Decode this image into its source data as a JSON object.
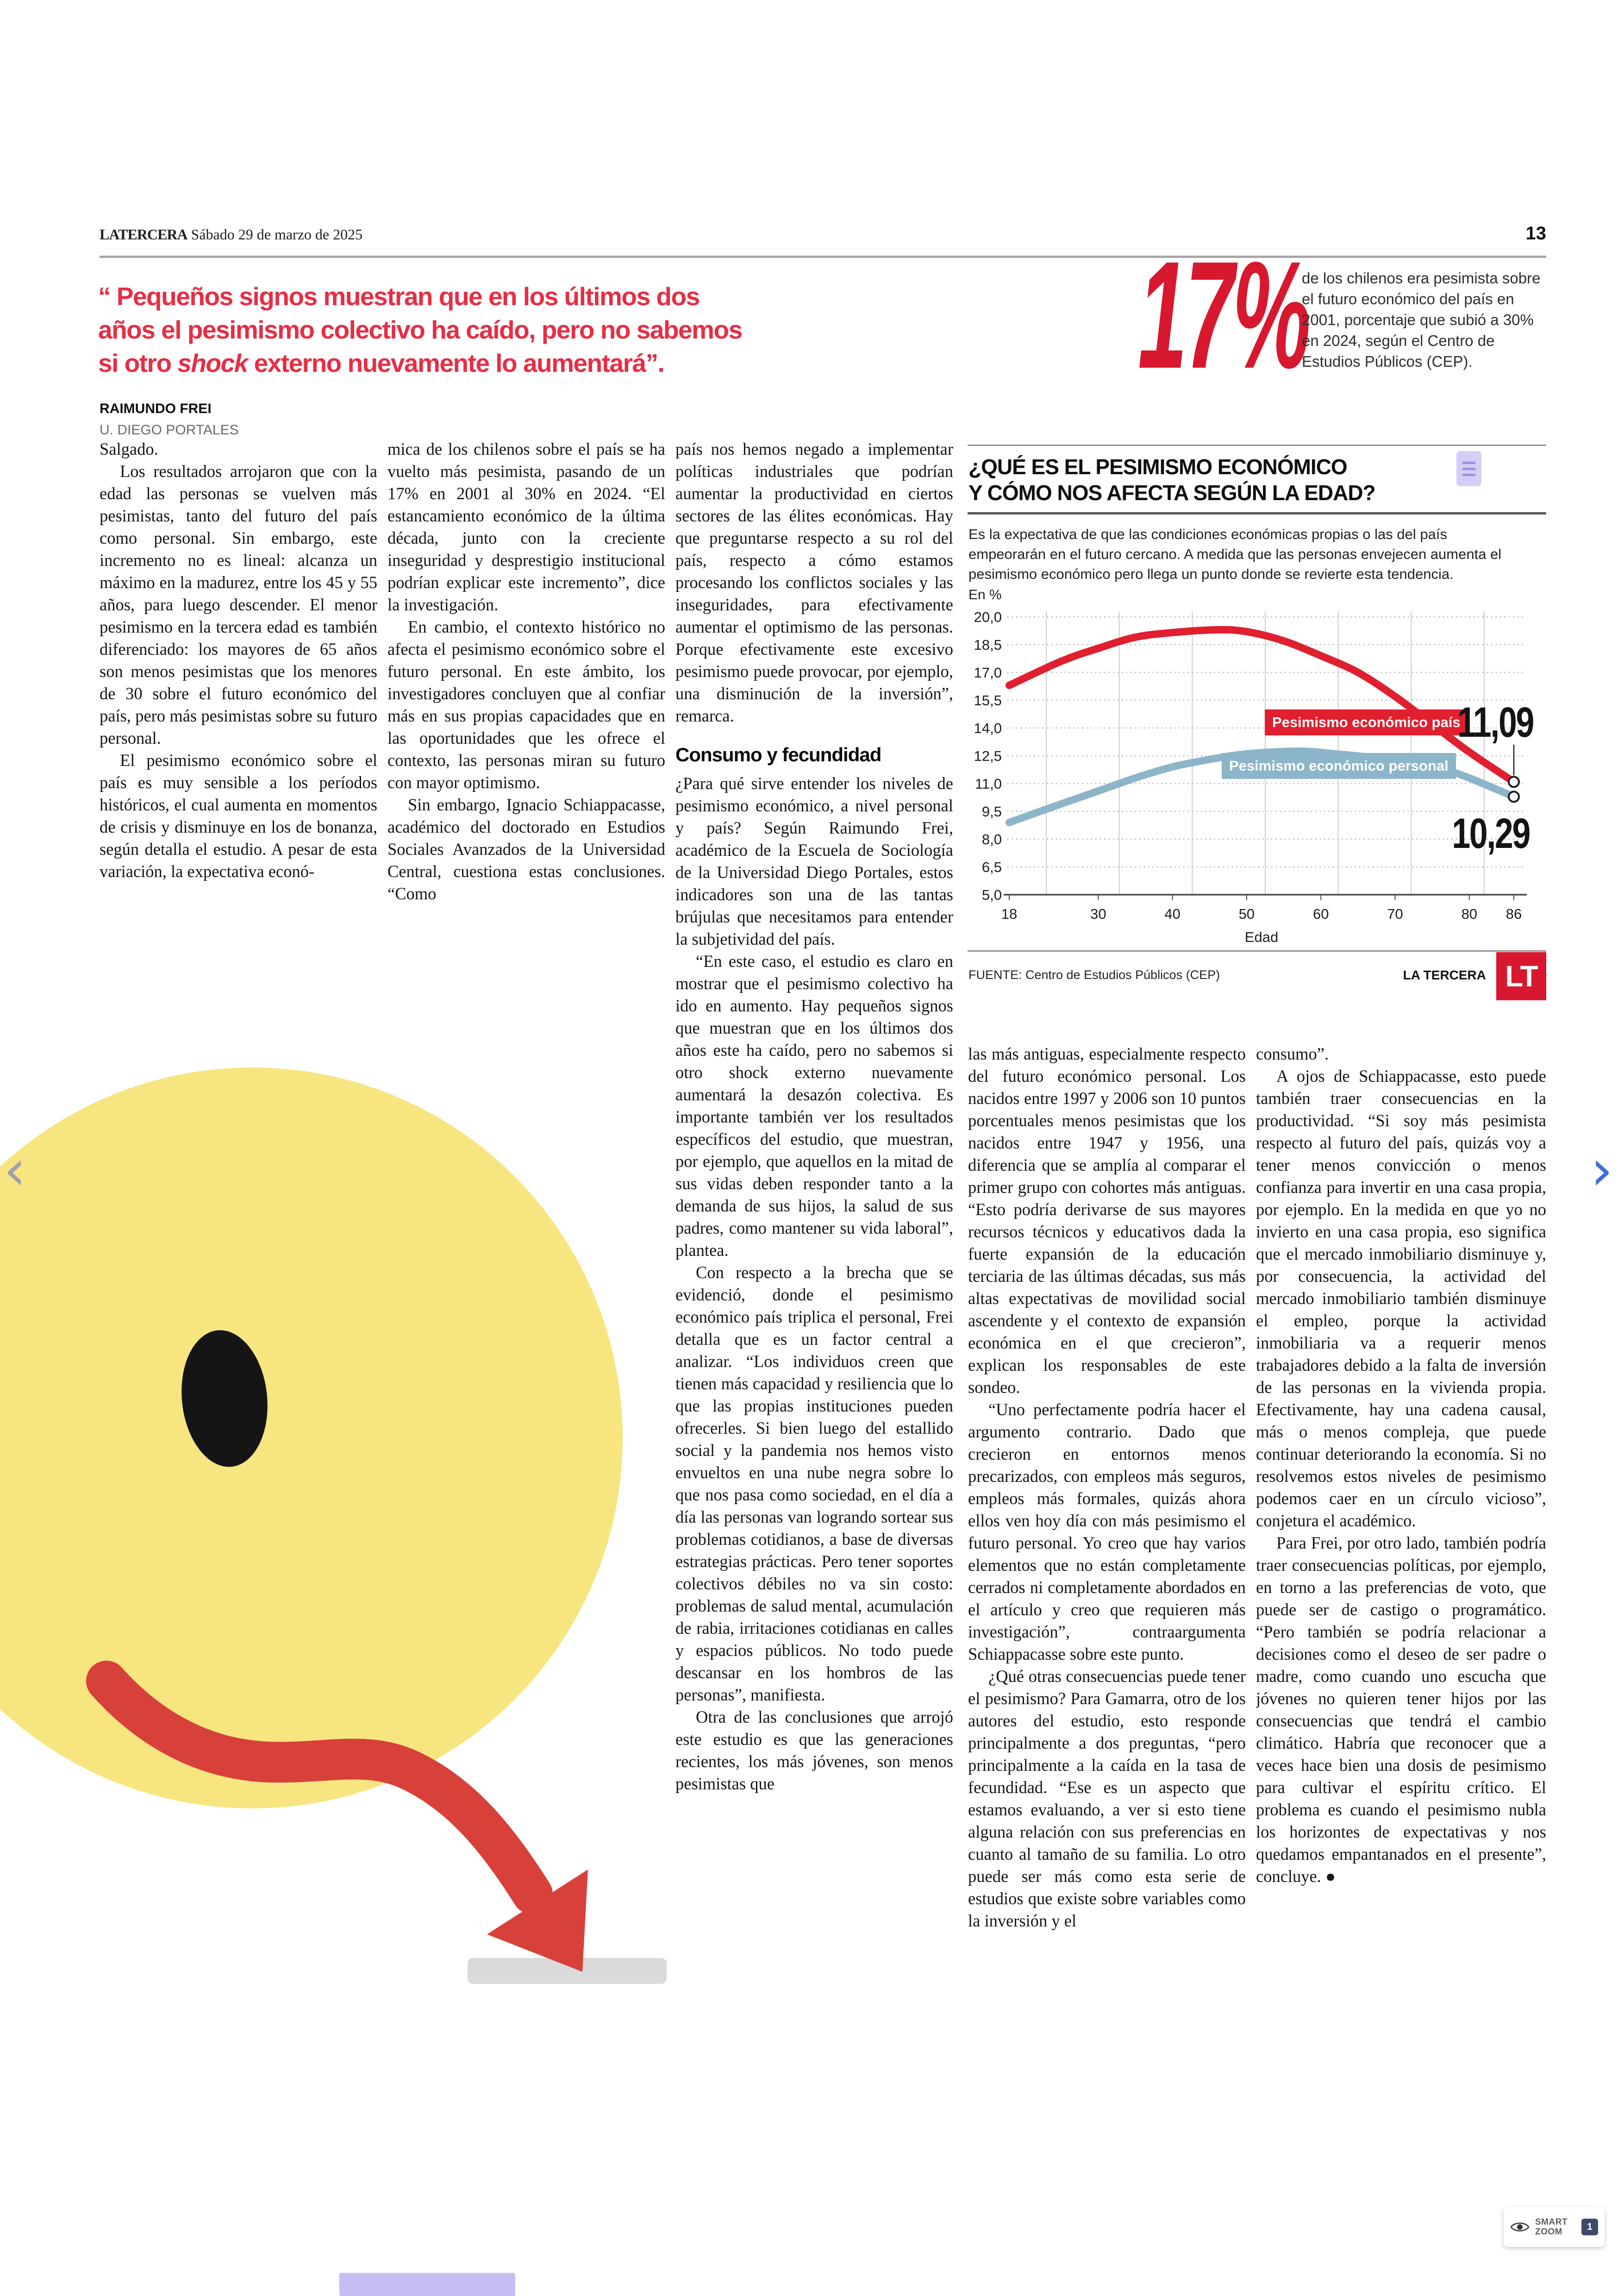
{
  "page": {
    "brand": "LATERCERA",
    "date": " Sábado 29 de marzo de 2025",
    "number": "13"
  },
  "quote": {
    "part1": "“ Pequeños signos muestran que en los últimos dos años el pesimismo colectivo ha caído, pero no sabemos si otro ",
    "italic": "shock",
    "part2": " externo nuevamente lo aumentará”.",
    "author": "RAIMUNDO FREI",
    "affiliation": "U. DIEGO PORTALES"
  },
  "stat": {
    "value": "17%",
    "text": "de los chilenos era pesimista sobre el futuro económico del país en 2001, porcentaje que subió a 30% en 2024, según el Centro de Estudios Públicos (CEP)."
  },
  "infographic": {
    "title_line1": "¿QUÉ ES EL PESIMISMO ECONÓMICO",
    "title_line2": "Y CÓMO NOS AFECTA SEGÚN LA EDAD?",
    "subtitle": "Es la expectativa de que las condiciones económicas propias o las del país empeorarán en el futuro cercano. A medida que las personas envejecen aumenta el pesimismo económico pero llega un punto donde se revierte esta tendencia.",
    "unit": "En %",
    "source": "FUENTE: Centro de Estudios Públicos (CEP)",
    "credit": "LA TERCERA",
    "logo": "LT"
  },
  "chart_data": {
    "type": "line",
    "title": "¿QUÉ ES EL PESIMISMO ECONÓMICO Y CÓMO NOS AFECTA SEGÚN LA EDAD?",
    "subtitle": "Es la expectativa de que las condiciones económicas propias o las del país empeorarán en el futuro cercano. A medida que las personas envejecen aumenta el pesimismo económico pero llega un punto donde se revierte esta tendencia.",
    "unit": "En %",
    "xlabel": "Edad",
    "x_ticks": [
      18,
      30,
      40,
      50,
      60,
      70,
      80,
      86
    ],
    "y_ticks": [
      5.0,
      6.5,
      8.0,
      9.5,
      11.0,
      12.5,
      14.0,
      15.5,
      17.0,
      18.5,
      20.0
    ],
    "xlim": [
      18,
      86
    ],
    "ylim": [
      5.0,
      20.0
    ],
    "grid": "horizontal dotted, vertical solid",
    "legend_position": "inline boxes on curves",
    "source": "FUENTE: Centro de Estudios Públicos (CEP)",
    "credit": "LA TERCERA",
    "series": [
      {
        "name": "Pesimismo económico país",
        "color": "#e01f2f",
        "end_label": "11,09",
        "end_value": 11.09,
        "points": [
          [
            18,
            16.3
          ],
          [
            25,
            17.6
          ],
          [
            30,
            18.3
          ],
          [
            35,
            18.9
          ],
          [
            40,
            19.15
          ],
          [
            46,
            19.3
          ],
          [
            50,
            19.2
          ],
          [
            55,
            18.7
          ],
          [
            60,
            17.9
          ],
          [
            65,
            17.0
          ],
          [
            70,
            15.7
          ],
          [
            75,
            14.2
          ],
          [
            80,
            12.7
          ],
          [
            86,
            11.09
          ]
        ]
      },
      {
        "name": "Pesimismo económico personal",
        "color": "#8db5c9",
        "end_label": "10,29",
        "end_value": 10.29,
        "points": [
          [
            18,
            8.9
          ],
          [
            25,
            9.9
          ],
          [
            30,
            10.6
          ],
          [
            35,
            11.3
          ],
          [
            40,
            11.9
          ],
          [
            45,
            12.3
          ],
          [
            50,
            12.6
          ],
          [
            57,
            12.75
          ],
          [
            62,
            12.6
          ],
          [
            67,
            12.4
          ],
          [
            72,
            12.1
          ],
          [
            77,
            11.7
          ],
          [
            80,
            11.3
          ],
          [
            86,
            10.29
          ]
        ]
      }
    ]
  },
  "article": {
    "columns": [
      {
        "blocks": [
          {
            "t": "p",
            "indent": false,
            "text": "Salgado."
          },
          {
            "t": "p",
            "indent": true,
            "text": "Los resultados arrojaron que con la edad las personas se vuelven más pesimistas, tanto del futuro del país como personal. Sin embargo, este incremento no es lineal: alcanza un máximo en la madurez, entre los 45 y 55 años, para luego descender. El menor pesimismo en la tercera edad es también diferenciado: los mayores de 65 años son menos pesimistas que los menores de 30 sobre el futuro económico del país, pero más pesimistas sobre su futuro personal."
          },
          {
            "t": "p",
            "indent": true,
            "text": "El pesimismo económico sobre el país es muy sensible a los períodos históricos, el cual aumenta en momentos de crisis y disminuye en los de bonanza, según detalla el estudio. A pesar de esta variación, la expectativa econó-"
          }
        ]
      },
      {
        "blocks": [
          {
            "t": "p",
            "indent": false,
            "text": "mica de los chilenos sobre el país se ha vuelto más pesimista, pasando de un 17% en 2001 al 30% en 2024. “El estancamiento económico de la última década, junto con la creciente inseguridad y desprestigio institucional podrían explicar este incremento”, dice la investigación."
          },
          {
            "t": "p",
            "indent": true,
            "text": "En cambio, el contexto histórico no afecta el pesimismo económico sobre el futuro personal. En este ámbito, los investigadores concluyen que al confiar más en sus propias capacidades que en las oportunidades que les ofrece el contexto, las personas miran su futuro con mayor optimismo."
          },
          {
            "t": "p",
            "indent": true,
            "text": "Sin embargo, Ignacio Schiappacasse, académico del doctorado en Estudios Sociales Avanzados de la Universidad Central, cuestiona estas conclusiones. “Como"
          }
        ]
      },
      {
        "blocks": [
          {
            "t": "p",
            "indent": false,
            "text": "país nos hemos negado a implementar políticas industriales que podrían aumentar la productividad en ciertos sectores de las élites económicas. Hay que preguntarse respecto a su rol del país, respecto a cómo estamos procesando los conflictos sociales y las inseguridades, para efectivamente aumentar el optimismo de las personas. Porque efectivamente este excesivo pesimismo puede provocar, por ejemplo, una disminución de la inversión”, remarca."
          },
          {
            "t": "h",
            "text": "Consumo y fecundidad"
          },
          {
            "t": "p",
            "indent": false,
            "text": "¿Para qué sirve entender los niveles de pesimismo económico, a nivel personal y país? Según Raimundo Frei, académico de la Escuela de Sociología de la Universidad Diego Portales, estos indicadores son una de las tantas brújulas que necesitamos para entender la subjetividad del país."
          },
          {
            "t": "p",
            "indent": true,
            "text": "“En este caso, el estudio es claro en mostrar que el pesimismo colectivo ha ido en aumento. Hay pequeños signos que muestran que en los últimos dos años este ha caído, pero no sabemos si otro shock externo nuevamente aumentará la desazón colectiva. Es importante también ver los resultados específicos del estudio, que muestran, por ejemplo, que aquellos en la mitad de sus vidas deben responder tanto a la demanda de sus hijos, la salud de sus padres, como mantener su vida laboral”, plantea."
          },
          {
            "t": "p",
            "indent": true,
            "text": "Con respecto a la brecha que se evidenció, donde el pesimismo económico país triplica el personal, Frei detalla que es un factor central a analizar. “Los individuos creen que tienen más capacidad y resiliencia que lo que las propias instituciones pueden ofrecerles. Si bien luego del estallido social y la pandemia nos hemos visto envueltos en una nube negra sobre lo que nos pasa como sociedad, en el día a día las personas van logrando sortear sus problemas cotidianos, a base de diversas estrategias prácticas. Pero tener soportes colectivos débiles no va sin costo: problemas de salud mental, acumulación de rabia, irritaciones cotidianas en calles y espacios públicos. No todo puede descansar en los hombros de las personas”, manifiesta."
          },
          {
            "t": "p",
            "indent": true,
            "text": "Otra de las conclusiones que arrojó este estudio es que las generaciones recientes, los más jóvenes, son menos pesimistas que"
          }
        ]
      },
      {
        "blocks": [
          {
            "t": "p",
            "indent": false,
            "text": "las más antiguas, especialmente respecto del futuro económico personal. Los nacidos entre 1997 y 2006 son 10 puntos porcentuales menos pesimistas que los nacidos entre 1947 y 1956, una diferencia que se amplía al comparar el primer grupo con cohortes más antiguas. “Esto podría derivarse de sus mayores recursos técnicos y educativos dada la fuerte expansión de la educación terciaria de las últimas décadas, sus más altas expectativas de movilidad social ascendente y el contexto de expansión económica en el que crecieron”, explican los responsables de este sondeo."
          },
          {
            "t": "p",
            "indent": true,
            "text": "“Uno perfectamente podría hacer el argumento contrario. Dado que crecieron en entornos menos precarizados, con empleos más seguros, empleos más formales, quizás ahora ellos ven hoy día con más pesimismo el futuro personal. Yo creo que hay varios elementos que no están completamente cerrados ni completamente abordados en el artículo y creo que requieren más investigación”, contraargumenta Schiappacasse sobre este punto."
          },
          {
            "t": "p",
            "indent": true,
            "text": "¿Qué otras consecuencias puede tener el pesimismo? Para Gamarra, otro de los autores del estudio, esto responde principalmente a dos preguntas, “pero principalmente a la caída en la tasa de fecundidad. “Ese es un aspecto que estamos evaluando, a ver si esto tiene alguna relación con sus preferencias en cuanto al tamaño de su familia. Lo otro puede ser más como esta serie de estudios que existe sobre variables como la inversión y el"
          }
        ]
      },
      {
        "blocks": [
          {
            "t": "p",
            "indent": false,
            "text": "consumo”."
          },
          {
            "t": "p",
            "indent": true,
            "text": "A ojos de Schiappacasse, esto puede también traer consecuencias en la productividad. “Si soy más pesimista respecto al futuro del país, quizás voy a tener menos convicción o menos confianza para invertir en una casa propia, por ejemplo. En la medida en que yo no invierto en una casa propia, eso significa que el mercado inmobiliario disminuye y, por consecuencia, la actividad del mercado inmobiliario también disminuye el empleo, porque la actividad inmobiliaria va a requerir menos trabajadores debido a la falta de inversión de las personas en la vivienda propia. Efectivamente, hay una cadena causal, más o menos compleja, que puede continuar deteriorando la economía. Si no resolvemos estos niveles de pesimismo podemos caer en un círculo vicioso”, conjetura el académico."
          },
          {
            "t": "p",
            "indent": true,
            "text": "Para Frei, por otro lado, también podría traer consecuencias políticas, por ejemplo, en torno a las preferencias de voto, que puede ser de castigo o programático. “Pero también se podría relacionar a decisiones como el deseo de ser padre o madre, como cuando uno escucha que jóvenes no quieren tener hijos por las consecuencias que tendrá el cambio climático. Habría que reconocer que a veces hace bien una dosis de pesimismo para cultivar el espíritu crítico. El problema es cuando el pesimismo nubla los horizontes de expectativas y nos quedamos empantanados en el presente”, concluye. ●"
          }
        ]
      }
    ]
  },
  "widgets": {
    "prev_glyph": "‹",
    "next_glyph": "›",
    "smart_zoom_line1": "SMART",
    "smart_zoom_line2": "ZOOM",
    "smart_zoom_badge": "1"
  },
  "colors": {
    "accent_red": "#e01f2f",
    "quote_red": "#e62e44",
    "series_blue": "#8db5c9",
    "smiley_yellow": "#f7e580",
    "illustration_red": "#d8403a"
  }
}
